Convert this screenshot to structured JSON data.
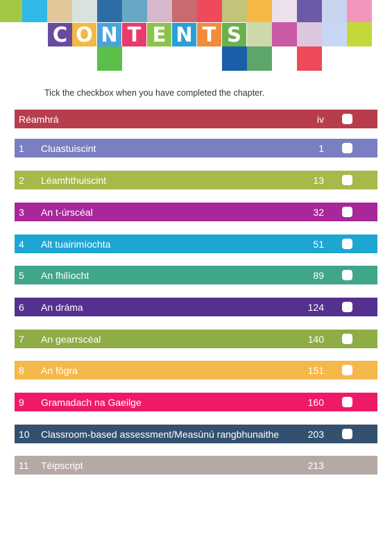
{
  "header": {
    "title_letters": [
      "C",
      "O",
      "N",
      "T",
      "E",
      "N",
      "T",
      "S"
    ],
    "title_letter_colors": [
      "#6a4a9e",
      "#f4b942",
      "#4aa3df",
      "#e93a6a",
      "#8bc34a",
      "#2a9fd6",
      "#f38a3c",
      "#6ab04c"
    ],
    "tile_colors": [
      "#a3c845",
      "#2fb8e8",
      "#e2c79a",
      "#d8e3dd",
      "#2e6ea6",
      "#67a9c4",
      "#d8b8cc",
      "#c96a70",
      "#ee4a5a",
      "#c3c47a",
      "#f6b845",
      "#ece0ec",
      "#6b5aa7",
      "#c9d4ee",
      "#f296bd",
      "#cdd9a8",
      "#c95aa6",
      "#dcc7e1",
      "#c8d8f4",
      "#c3d93a",
      "#5cbf4a",
      "#1b5fa8",
      "#5ea56a",
      "#ee4a5a"
    ]
  },
  "instruction": "Tick the checkbox when you have completed the chapter.",
  "chapters": [
    {
      "num": "",
      "title": "Réamhrá",
      "page": "iv",
      "color": "#b83d4c",
      "has_checkbox": true
    },
    {
      "num": "1",
      "title": "Cluastuiscint",
      "page": "1",
      "color": "#7a7fc1",
      "has_checkbox": true
    },
    {
      "num": "2",
      "title": "Léamhthuiscint",
      "page": "13",
      "color": "#a8b84a",
      "has_checkbox": true
    },
    {
      "num": "3",
      "title": "An t-úrscéal",
      "page": "32",
      "color": "#a8279a",
      "has_checkbox": true
    },
    {
      "num": "4",
      "title": "Alt tuairimíochta",
      "page": "51",
      "color": "#1ea6d3",
      "has_checkbox": true
    },
    {
      "num": "5",
      "title": "An fhilíocht",
      "page": "89",
      "color": "#3fa68a",
      "has_checkbox": true
    },
    {
      "num": "6",
      "title": "An dráma",
      "page": "124",
      "color": "#55318f",
      "has_checkbox": true
    },
    {
      "num": "7",
      "title": "An gearrscéal",
      "page": "140",
      "color": "#8fad45",
      "has_checkbox": true
    },
    {
      "num": "8",
      "title": "An fógra",
      "page": "151",
      "color": "#f5b84a",
      "has_checkbox": true
    },
    {
      "num": "9",
      "title": "Gramadach na Gaeilge",
      "page": "160",
      "color": "#ee1a67",
      "has_checkbox": true
    },
    {
      "num": "10",
      "title": "Classroom-based assessment/Measúnú rangbhunaithe",
      "page": "203",
      "color": "#33516f",
      "has_checkbox": true
    },
    {
      "num": "11",
      "title": "Téipscript",
      "page": "213",
      "color": "#b5a9a6",
      "has_checkbox": false
    }
  ]
}
